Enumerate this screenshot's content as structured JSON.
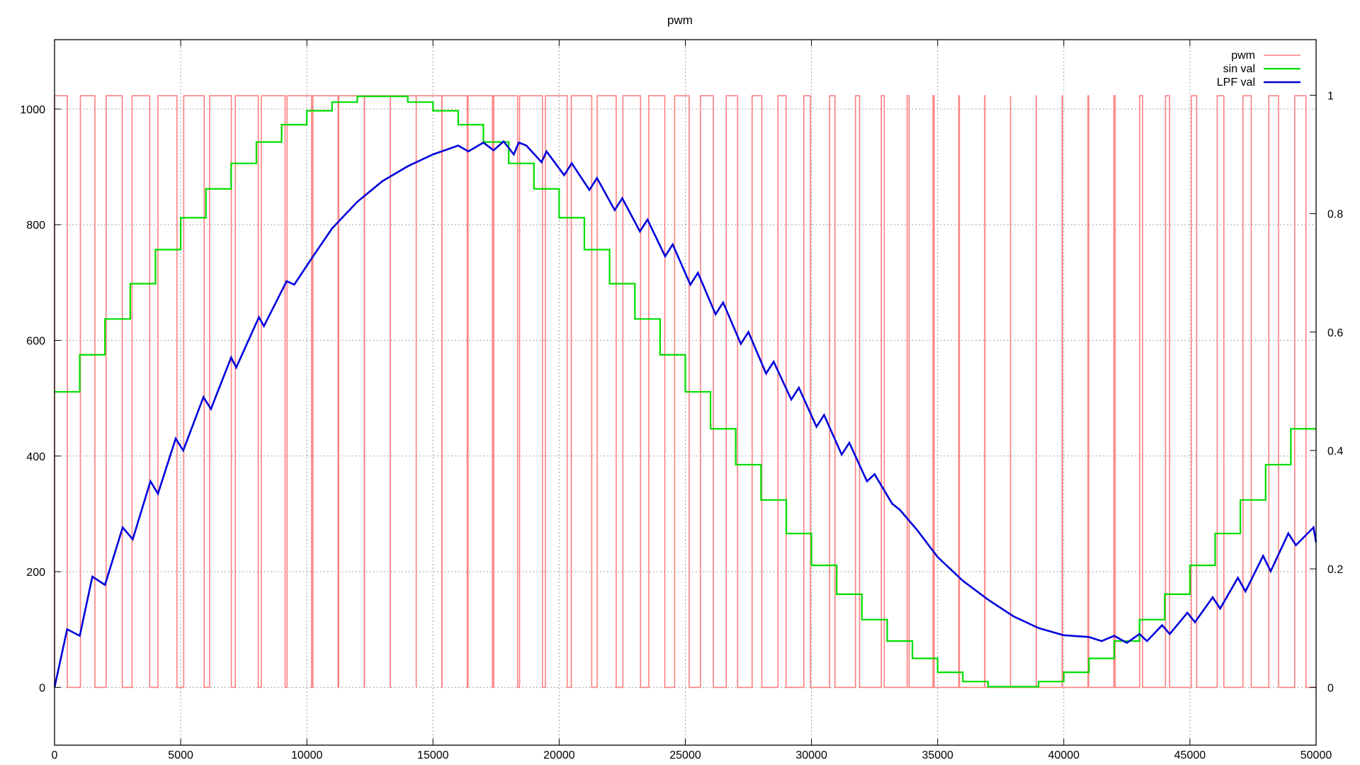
{
  "chart_data": {
    "type": "line",
    "title": "pwm",
    "xlabel": "",
    "ylabel": "",
    "y2label": "",
    "xlim": [
      0,
      50000
    ],
    "ylim": [
      -100,
      1120
    ],
    "y2lim": [
      -0.0977,
      1.0938
    ],
    "grid": true,
    "legend_position": "top-right",
    "x_ticks": [
      0,
      5000,
      10000,
      15000,
      20000,
      25000,
      30000,
      35000,
      40000,
      45000,
      50000
    ],
    "x_tick_labels": [
      "0",
      "5000",
      "10000",
      "15000",
      "20000",
      "25000",
      "30000",
      "35000",
      "40000",
      "45000",
      "50000"
    ],
    "y_ticks": [
      0,
      200,
      400,
      600,
      800,
      1000
    ],
    "y_tick_labels": [
      "0",
      "200",
      "400",
      "600",
      "800",
      "1000"
    ],
    "y2_ticks": [
      0,
      0.2,
      0.4,
      0.6,
      0.8,
      1.0
    ],
    "y2_tick_labels": [
      "0",
      "0.2",
      "0.4",
      "0.6",
      "0.8",
      "1"
    ],
    "series": [
      {
        "name": "pwm",
        "color": "#ff7f7f",
        "axis": "y",
        "kind": "pwm",
        "high": 1023,
        "low": 0,
        "period": 1024,
        "duty_source": "sin val"
      },
      {
        "name": "sin val",
        "color": "#00dd00",
        "axis": "y",
        "kind": "step",
        "step_width": 1000,
        "values": [
          511,
          575,
          637,
          698,
          757,
          812,
          862,
          906,
          943,
          973,
          997,
          1012,
          1022,
          1022,
          1012,
          997,
          973,
          943,
          906,
          862,
          812,
          757,
          698,
          637,
          575,
          511,
          447,
          385,
          324,
          266,
          211,
          161,
          117,
          80,
          50,
          26,
          10,
          1,
          1,
          10,
          26,
          50,
          80,
          117,
          161,
          211,
          266,
          324,
          385,
          447
        ]
      },
      {
        "name": "LPF val",
        "color": "#0000dd",
        "axis": "y2",
        "kind": "line",
        "x": [
          0,
          500,
          1000,
          1500,
          2000,
          2700,
          3100,
          3800,
          4100,
          4800,
          5100,
          5900,
          6200,
          7000,
          7200,
          8100,
          8300,
          9200,
          9500,
          10200,
          11000,
          12000,
          13000,
          14000,
          15000,
          16000,
          16400,
          17000,
          17400,
          17800,
          18200,
          18400,
          18700,
          19300,
          19500,
          20200,
          20500,
          21200,
          21500,
          22200,
          22500,
          23200,
          23500,
          24200,
          24500,
          25200,
          25500,
          26200,
          26500,
          27200,
          27500,
          28200,
          28500,
          29200,
          29500,
          30200,
          30500,
          31200,
          31500,
          32200,
          32500,
          33200,
          33500,
          34200,
          35000,
          36000,
          37000,
          38000,
          39000,
          40000,
          41000,
          41500,
          42000,
          42500,
          43000,
          43300,
          43900,
          44200,
          44900,
          45200,
          45900,
          46200,
          46900,
          47200,
          47900,
          48200,
          48900,
          49200,
          49900,
          50000
        ],
        "values": [
          0,
          0.098,
          0.087,
          0.187,
          0.173,
          0.27,
          0.25,
          0.348,
          0.327,
          0.42,
          0.4,
          0.49,
          0.47,
          0.557,
          0.54,
          0.625,
          0.61,
          0.686,
          0.68,
          0.725,
          0.775,
          0.82,
          0.855,
          0.88,
          0.9,
          0.915,
          0.905,
          0.92,
          0.907,
          0.922,
          0.9,
          0.92,
          0.915,
          0.887,
          0.905,
          0.865,
          0.885,
          0.84,
          0.86,
          0.806,
          0.826,
          0.77,
          0.79,
          0.728,
          0.748,
          0.68,
          0.7,
          0.63,
          0.65,
          0.58,
          0.6,
          0.53,
          0.55,
          0.486,
          0.506,
          0.44,
          0.46,
          0.393,
          0.413,
          0.348,
          0.36,
          0.31,
          0.3,
          0.265,
          0.22,
          0.18,
          0.148,
          0.12,
          0.1,
          0.088,
          0.085,
          0.078,
          0.087,
          0.075,
          0.09,
          0.078,
          0.105,
          0.09,
          0.126,
          0.11,
          0.152,
          0.133,
          0.185,
          0.162,
          0.222,
          0.196,
          0.26,
          0.24,
          0.27,
          0.245
        ]
      }
    ]
  }
}
